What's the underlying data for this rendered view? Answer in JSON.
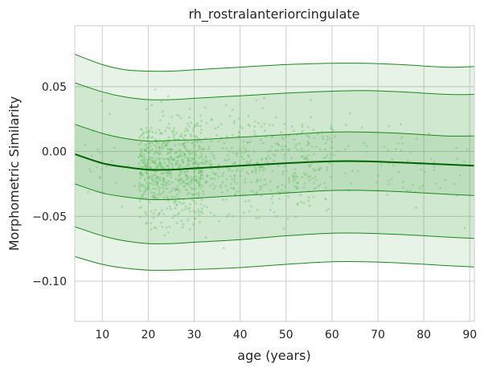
{
  "chart_data": {
    "type": "line",
    "title": "rh_rostralanteriorcingulate",
    "xlabel": "age (years)",
    "ylabel": "Morphometric Similarity",
    "xlim": [
      4,
      91
    ],
    "ylim": [
      -0.131,
      0.097
    ],
    "xticks": [
      10,
      20,
      30,
      40,
      50,
      60,
      70,
      80,
      90
    ],
    "yticks": [
      -0.1,
      -0.05,
      0.0,
      0.05
    ],
    "ytick_labels": [
      "−0.10",
      "−0.05",
      "0.00",
      "0.05"
    ],
    "grid": true,
    "colors": {
      "line": "#1a8a1a",
      "median": "#006400",
      "fill": "#2e9a2e",
      "scatter": "#6abf69",
      "grid": "#cccccc",
      "frame": "#cccccc"
    },
    "x": [
      4,
      10,
      15,
      20,
      25,
      30,
      40,
      50,
      60,
      67,
      75,
      85,
      91
    ],
    "series": [
      {
        "values": [
          -0.081,
          -0.087,
          -0.09,
          -0.0915,
          -0.0915,
          -0.091,
          -0.0895,
          -0.087,
          -0.085,
          -0.085,
          -0.086,
          -0.088,
          -0.089
        ]
      },
      {
        "values": [
          -0.058,
          -0.065,
          -0.069,
          -0.071,
          -0.071,
          -0.07,
          -0.068,
          -0.065,
          -0.063,
          -0.063,
          -0.064,
          -0.066,
          -0.067
        ]
      },
      {
        "values": [
          -0.025,
          -0.032,
          -0.035,
          -0.037,
          -0.037,
          -0.036,
          -0.034,
          -0.032,
          -0.03,
          -0.03,
          -0.031,
          -0.033,
          -0.034
        ]
      },
      {
        "values": [
          -0.002,
          -0.009,
          -0.012,
          -0.014,
          -0.014,
          -0.013,
          -0.011,
          -0.009,
          -0.0075,
          -0.0075,
          -0.0085,
          -0.01,
          -0.011
        ]
      },
      {
        "values": [
          0.021,
          0.014,
          0.01,
          0.008,
          0.0085,
          0.009,
          0.011,
          0.013,
          0.015,
          0.015,
          0.014,
          0.012,
          0.012
        ]
      },
      {
        "values": [
          0.053,
          0.046,
          0.042,
          0.04,
          0.04,
          0.041,
          0.043,
          0.045,
          0.0465,
          0.047,
          0.046,
          0.044,
          0.044
        ]
      },
      {
        "values": [
          0.075,
          0.067,
          0.063,
          0.062,
          0.062,
          0.063,
          0.065,
          0.067,
          0.068,
          0.068,
          0.067,
          0.065,
          0.0655
        ]
      }
    ],
    "scatter_points_approx": 1200
  }
}
